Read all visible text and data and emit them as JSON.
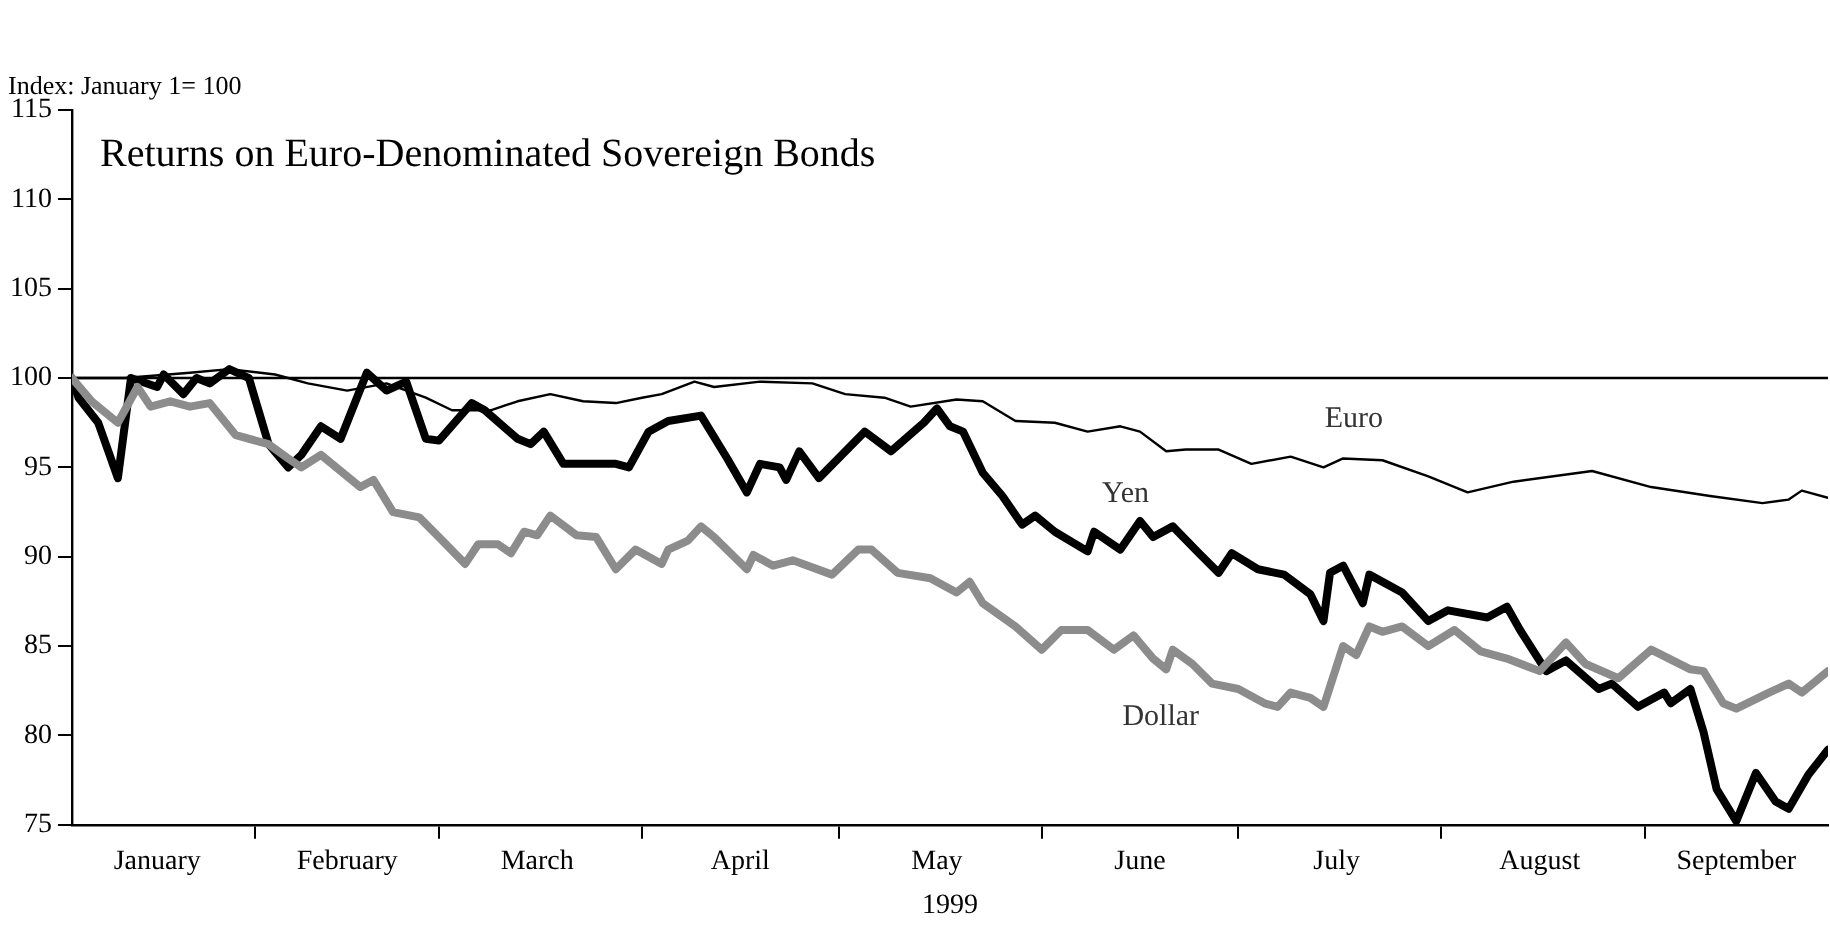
{
  "chart_data": {
    "type": "line",
    "title": "Returns on Euro-Denominated Sovereign Bonds",
    "ylabel": "Index: January 1= 100",
    "xlabel": "1999",
    "xlim": [
      "1999-01-04",
      "1999-09-29"
    ],
    "xticks": [
      {
        "value": "1999-01-17",
        "label": "January"
      },
      {
        "value": "1999-02-01",
        "label": null
      },
      {
        "value": "1999-02-15",
        "label": "February"
      },
      {
        "value": "1999-03-01",
        "label": null
      },
      {
        "value": "1999-03-16",
        "label": "March"
      },
      {
        "value": "1999-04-01",
        "label": null
      },
      {
        "value": "1999-04-16",
        "label": "April"
      },
      {
        "value": "1999-05-01",
        "label": null
      },
      {
        "value": "1999-05-16",
        "label": "May"
      },
      {
        "value": "1999-06-01",
        "label": null
      },
      {
        "value": "1999-06-16",
        "label": "June"
      },
      {
        "value": "1999-07-01",
        "label": null
      },
      {
        "value": "1999-07-16",
        "label": "July"
      },
      {
        "value": "1999-08-01",
        "label": null
      },
      {
        "value": "1999-08-16",
        "label": "August"
      },
      {
        "value": "1999-09-01",
        "label": null
      },
      {
        "value": "1999-09-15",
        "label": "September"
      }
    ],
    "ylim": [
      75,
      115
    ],
    "yticks": [
      75,
      80,
      85,
      90,
      95,
      100,
      105,
      110,
      115
    ],
    "ref_lines": [
      {
        "axis": "y",
        "value": 100,
        "color": "#000000"
      }
    ],
    "series": [
      {
        "name": "Euro",
        "color": "#000000",
        "x": [
          "1999-01-04",
          "1999-01-12",
          "1999-01-22",
          "1999-01-28",
          "1999-02-04",
          "1999-02-09",
          "1999-02-15",
          "1999-02-21",
          "1999-02-27",
          "1999-03-03",
          "1999-03-09",
          "1999-03-13",
          "1999-03-18",
          "1999-03-23",
          "1999-03-28",
          "1999-04-01",
          "1999-04-04",
          "1999-04-09",
          "1999-04-12",
          "1999-04-19",
          "1999-04-27",
          "1999-05-02",
          "1999-05-08",
          "1999-05-12",
          "1999-05-19",
          "1999-05-23",
          "1999-05-28",
          "1999-06-03",
          "1999-06-08",
          "1999-06-13",
          "1999-06-16",
          "1999-06-20",
          "1999-06-23",
          "1999-06-28",
          "1999-07-03",
          "1999-07-09",
          "1999-07-14",
          "1999-07-17",
          "1999-07-23",
          "1999-07-30",
          "1999-08-05",
          "1999-08-12",
          "1999-08-24",
          "1999-09-02",
          "1999-09-11",
          "1999-09-19",
          "1999-09-23",
          "1999-09-25",
          "1999-09-29"
        ],
        "values": [
          100,
          100,
          100.3,
          100.5,
          100.2,
          99.7,
          99.3,
          99.7,
          98.9,
          98.2,
          98.2,
          98.7,
          99.1,
          98.7,
          98.6,
          98.9,
          99.1,
          99.8,
          99.5,
          99.8,
          99.7,
          99.1,
          98.9,
          98.4,
          98.8,
          98.7,
          97.6,
          97.5,
          97,
          97.3,
          97,
          95.9,
          96,
          96,
          95.2,
          95.6,
          95,
          95.5,
          95.4,
          94.5,
          93.6,
          94.2,
          94.8,
          93.9,
          93.4,
          93,
          93.2,
          93.7,
          93.3
        ]
      },
      {
        "name": "Yen",
        "color": "#000000",
        "x": [
          "1999-01-04",
          "1999-01-05",
          "1999-01-08",
          "1999-01-11",
          "1999-01-13",
          "1999-01-17",
          "1999-01-18",
          "1999-01-21",
          "1999-01-23",
          "1999-01-25",
          "1999-01-28",
          "1999-01-31",
          "1999-02-03",
          "1999-02-06",
          "1999-02-08",
          "1999-02-11",
          "1999-02-14",
          "1999-02-18",
          "1999-02-21",
          "1999-02-24",
          "1999-02-27",
          "1999-03-01",
          "1999-03-06",
          "1999-03-08",
          "1999-03-13",
          "1999-03-15",
          "1999-03-17",
          "1999-03-20",
          "1999-03-28",
          "1999-03-30",
          "1999-04-02",
          "1999-04-05",
          "1999-04-10",
          "1999-04-14",
          "1999-04-17",
          "1999-04-19",
          "1999-04-22",
          "1999-04-23",
          "1999-04-25",
          "1999-04-28",
          "1999-05-05",
          "1999-05-09",
          "1999-05-14",
          "1999-05-16",
          "1999-05-18",
          "1999-05-20",
          "1999-05-23",
          "1999-05-26",
          "1999-05-29",
          "1999-05-31",
          "1999-06-03",
          "1999-06-08",
          "1999-06-09",
          "1999-06-13",
          "1999-06-16",
          "1999-06-18",
          "1999-06-21",
          "1999-06-25",
          "1999-06-28",
          "1999-06-30",
          "1999-07-04",
          "1999-07-08",
          "1999-07-12",
          "1999-07-14",
          "1999-07-15",
          "1999-07-17",
          "1999-07-20",
          "1999-07-21",
          "1999-07-26",
          "1999-07-30",
          "1999-08-02",
          "1999-08-08",
          "1999-08-11",
          "1999-08-13",
          "1999-08-17",
          "1999-08-20",
          "1999-08-25",
          "1999-08-27",
          "1999-08-31",
          "1999-09-04",
          "1999-09-05",
          "1999-09-08",
          "1999-09-10",
          "1999-09-12",
          "1999-09-15",
          "1999-09-18",
          "1999-09-21",
          "1999-09-23",
          "1999-09-26",
          "1999-09-29"
        ],
        "values": [
          100,
          98.9,
          97.5,
          94.4,
          100,
          99.5,
          100.2,
          99.1,
          100,
          99.7,
          100.5,
          100,
          96.3,
          95,
          95.7,
          97.3,
          96.6,
          100.3,
          99.3,
          99.8,
          96.6,
          96.5,
          98.6,
          98.2,
          96.6,
          96.3,
          97,
          95.2,
          95.2,
          95,
          97,
          97.6,
          97.9,
          95.5,
          93.6,
          95.2,
          95,
          94.3,
          95.9,
          94.4,
          97,
          95.9,
          97.5,
          98.3,
          97.3,
          97,
          94.7,
          93.4,
          91.8,
          92.3,
          91.4,
          90.3,
          91.4,
          90.4,
          92,
          91.1,
          91.7,
          90.2,
          89.1,
          90.2,
          89.3,
          89,
          87.9,
          86.4,
          89.1,
          89.5,
          87.4,
          89,
          88,
          86.4,
          87,
          86.6,
          87.2,
          85.9,
          83.6,
          84.2,
          82.6,
          82.9,
          81.6,
          82.4,
          81.8,
          82.6,
          80.2,
          77,
          75.2,
          77.9,
          76.3,
          75.9,
          77.8,
          79.2
        ]
      },
      {
        "name": "Dollar",
        "color": "#8c8c8c",
        "x": [
          "1999-01-04",
          "1999-01-07",
          "1999-01-11",
          "1999-01-14",
          "1999-01-16",
          "1999-01-19",
          "1999-01-22",
          "1999-01-25",
          "1999-01-29",
          "1999-02-01",
          "1999-02-03",
          "1999-02-06",
          "1999-02-08",
          "1999-02-11",
          "1999-02-17",
          "1999-02-19",
          "1999-02-22",
          "1999-02-26",
          "1999-03-01",
          "1999-03-05",
          "1999-03-07",
          "1999-03-10",
          "1999-03-12",
          "1999-03-14",
          "1999-03-16",
          "1999-03-18",
          "1999-03-22",
          "1999-03-25",
          "1999-03-28",
          "1999-03-31",
          "1999-04-04",
          "1999-04-05",
          "1999-04-08",
          "1999-04-10",
          "1999-04-12",
          "1999-04-17",
          "1999-04-18",
          "1999-04-21",
          "1999-04-24",
          "1999-04-30",
          "1999-05-04",
          "1999-05-06",
          "1999-05-10",
          "1999-05-15",
          "1999-05-19",
          "1999-05-21",
          "1999-05-23",
          "1999-05-28",
          "1999-06-01",
          "1999-06-04",
          "1999-06-08",
          "1999-06-12",
          "1999-06-15",
          "1999-06-18",
          "1999-06-20",
          "1999-06-21",
          "1999-06-24",
          "1999-06-27",
          "1999-07-01",
          "1999-07-05",
          "1999-07-07",
          "1999-07-09",
          "1999-07-12",
          "1999-07-14",
          "1999-07-17",
          "1999-07-19",
          "1999-07-21",
          "1999-07-23",
          "1999-07-26",
          "1999-07-30",
          "1999-08-03",
          "1999-08-07",
          "1999-08-11",
          "1999-08-16",
          "1999-08-20",
          "1999-08-23",
          "1999-08-28",
          "1999-09-02",
          "1999-09-08",
          "1999-09-10",
          "1999-09-13",
          "1999-09-15",
          "1999-09-20",
          "1999-09-23",
          "1999-09-25",
          "1999-09-29"
        ],
        "values": [
          100,
          98.7,
          97.5,
          99.5,
          98.4,
          98.7,
          98.4,
          98.6,
          96.8,
          96.5,
          96.3,
          95.5,
          95,
          95.7,
          93.9,
          94.3,
          92.5,
          92.2,
          91.1,
          89.6,
          90.7,
          90.7,
          90.2,
          91.4,
          91.2,
          92.3,
          91.2,
          91.1,
          89.3,
          90.4,
          89.6,
          90.4,
          90.9,
          91.7,
          91.1,
          89.3,
          90.1,
          89.5,
          89.8,
          89,
          90.4,
          90.4,
          89.1,
          88.8,
          88,
          88.6,
          87.4,
          86.1,
          84.8,
          85.9,
          85.9,
          84.8,
          85.6,
          84.3,
          83.7,
          84.8,
          84,
          82.9,
          82.6,
          81.8,
          81.6,
          82.4,
          82.1,
          81.6,
          85,
          84.5,
          86.1,
          85.8,
          86.1,
          85,
          85.9,
          84.7,
          84.3,
          83.6,
          85.2,
          84,
          83.2,
          84.8,
          83.7,
          83.6,
          81.8,
          81.5,
          82.4,
          82.9,
          82.4,
          83.6
        ]
      }
    ]
  }
}
